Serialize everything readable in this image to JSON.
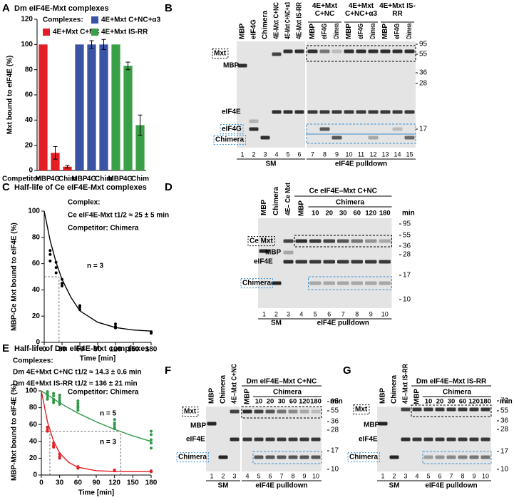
{
  "panel_letters": [
    "A",
    "B",
    "C",
    "D",
    "E",
    "F",
    "G"
  ],
  "chart_data": [
    {
      "type": "bar",
      "title": "Dm eIF4E-Mxt complexes",
      "legend_title": "Complexes:",
      "ylabel": "Mxt bound to eIF4E (%)",
      "xlabel": "Competitor",
      "categories": [
        "MBP",
        "4G",
        "Chim",
        "MBP",
        "4G",
        "Chim",
        "MBP",
        "4G",
        "Chim"
      ],
      "series": [
        {
          "name": "4E+Mxt C+NC",
          "color": "#e31e24",
          "values": [
            100,
            14,
            3,
            null,
            null,
            null,
            null,
            null,
            null
          ],
          "errors": [
            null,
            5,
            1,
            null,
            null,
            null,
            null,
            null,
            null
          ]
        },
        {
          "name": "4E+Mxt C+NC+α3",
          "color": "#3a53a4",
          "values": [
            null,
            null,
            null,
            100,
            100,
            100,
            null,
            null,
            null
          ],
          "errors": [
            null,
            null,
            null,
            null,
            3,
            4,
            null,
            null,
            null
          ]
        },
        {
          "name": "4E+Mxt IS-RR",
          "color": "#3aa047",
          "values": [
            null,
            null,
            null,
            null,
            null,
            null,
            100,
            83,
            36
          ],
          "errors": [
            null,
            null,
            null,
            null,
            null,
            null,
            null,
            3,
            8
          ]
        }
      ],
      "ylim": [
        0,
        120
      ],
      "yticks": [
        0,
        20,
        40,
        60,
        80,
        100,
        120
      ]
    },
    {
      "type": "scatter",
      "title": "Half-life of Ce eIF4E-Mxt complexes",
      "ylabel": "MBP-Ce Mxt bound to eIF4E (%)",
      "xlabel": "Time [min]",
      "annotations": [
        "Complex:",
        "Ce eIF4E-Mxt   t1/2 ≈ 25 ± 5 min",
        "Competitor: Chimera",
        "n = 3"
      ],
      "series": [
        {
          "color": "#000000",
          "x": [
            10,
            10,
            10,
            20,
            20,
            20,
            30,
            30,
            30,
            60,
            60,
            60,
            120,
            120,
            120,
            180,
            180,
            180
          ],
          "values": [
            70,
            67,
            62,
            61,
            57,
            53,
            48,
            45,
            43,
            28,
            27,
            25,
            14,
            12,
            11,
            8,
            8,
            7
          ],
          "fit": {
            "x": [
              0,
              10,
              20,
              30,
              45,
              60,
              90,
              120,
              150,
              180
            ],
            "values": [
              100,
              77.7,
              60.8,
              48.0,
              34.3,
              24.0,
              15.3,
              11.3,
              9.4,
              8.6
            ]
          }
        }
      ],
      "half_life_guides": [
        {
          "x": 25,
          "y": 50
        }
      ],
      "xlim": [
        0,
        180
      ],
      "xticks": [
        0,
        30,
        60,
        90,
        120,
        150,
        180
      ],
      "ylim": [
        0,
        100
      ],
      "yticks": [
        0,
        20,
        40,
        60,
        80,
        100
      ]
    },
    {
      "type": "scatter",
      "title": "Half-life of Dm eIF4E-Mxt complexes",
      "ylabel": "MBP-Mxt bound to eIF4E (%)",
      "xlabel": "Time [min]",
      "annotations": [
        "Complexes:",
        "Dm 4E+Mxt C+NC   t1/2 ≈ 14.3 ± 0.6 min",
        "Dm 4E+Mxt IS-RR   t1/2 ≈ 136 ± 21 min",
        "Competitor: Chimera",
        "n = 5",
        "n = 3"
      ],
      "series": [
        {
          "color": "#e31e24",
          "x": [
            10,
            10,
            10,
            20,
            20,
            20,
            30,
            30,
            30,
            60,
            60,
            60,
            120,
            120,
            120,
            180,
            180,
            180
          ],
          "values": [
            57,
            54,
            52,
            38,
            35,
            33,
            25,
            22,
            20,
            10,
            8,
            9,
            6,
            5,
            5,
            4,
            4,
            5
          ],
          "fit": {
            "x": [
              0,
              10,
              20,
              30,
              45,
              60,
              90,
              120,
              150,
              180
            ],
            "values": [
              100,
              63.1,
              40.4,
              26.0,
              14.9,
              9.2,
              5.2,
              4.3,
              4.1,
              4.0
            ]
          }
        },
        {
          "color": "#2e9a45",
          "x": [
            10,
            10,
            10,
            10,
            10,
            20,
            20,
            20,
            20,
            20,
            30,
            30,
            30,
            30,
            30,
            60,
            60,
            60,
            60,
            60,
            120,
            120,
            120,
            120,
            120,
            180,
            180,
            180,
            180,
            180
          ],
          "values": [
            99,
            97,
            95,
            92,
            90,
            97,
            94,
            90,
            88,
            86,
            95,
            92,
            89,
            86,
            84,
            88,
            85,
            82,
            80,
            77,
            66,
            62,
            60,
            57,
            55,
            52,
            48,
            42,
            38,
            32
          ],
          "fit": {
            "x": [
              0,
              30,
              60,
              90,
              120,
              150,
              180
            ],
            "values": [
              100,
              85.8,
              73.6,
              63.2,
              54.2,
              46.5,
              39.9
            ]
          }
        }
      ],
      "half_life_guides": [
        {
          "x": 14,
          "y": 52
        },
        {
          "x": 130,
          "y": 52
        }
      ],
      "xlim": [
        0,
        180
      ],
      "xticks": [
        0,
        30,
        60,
        90,
        120,
        150,
        180
      ],
      "ylim": [
        0,
        100
      ],
      "yticks": [
        0,
        20,
        40,
        60,
        80,
        100
      ]
    }
  ],
  "gels": [
    {
      "top_labels": [
        "MBP",
        "eIF4G",
        "Chimera",
        "4E-Mxt C+NC",
        "4E-Mxt C+NC+α3",
        "4E-Mxt IS-RR"
      ],
      "groups": [
        {
          "title": "4E+Mxt C+NC",
          "lanes": [
            "MBP",
            "eIF4G",
            "Chimera"
          ]
        },
        {
          "title": "4E+Mxt C+NC+α3",
          "lanes": [
            "MBP",
            "eIF4G",
            "Chimera"
          ]
        },
        {
          "title": "4E+Mxt IS-RR",
          "lanes": [
            "MBP",
            "eIF4G",
            "Chimera"
          ]
        }
      ],
      "markers": [
        95,
        55,
        36,
        28,
        17
      ],
      "left_labels": [
        "Mxt",
        "MBP",
        "eIF4E",
        "eIF4G",
        "Chimera"
      ],
      "lane_numbers": [
        1,
        2,
        3,
        4,
        5,
        6,
        7,
        8,
        9,
        10,
        11,
        12,
        13,
        14,
        15
      ],
      "bottom_labels": [
        "SM",
        "eIF4E pulldown"
      ]
    },
    {
      "top_labels": [
        "MBP",
        "Chimera",
        "4E– Ce Mxt"
      ],
      "title": "Ce eIF4E–Mxt C+NC",
      "subtitle": "Chimera",
      "lane_labels": [
        "MBP",
        10,
        20,
        30,
        60,
        120,
        180
      ],
      "unit": "min",
      "markers": [
        95,
        55,
        36,
        28,
        17,
        10
      ],
      "left_labels": [
        "Ce Mxt",
        "MBP",
        "eIF4E",
        "Chimera"
      ],
      "lane_numbers": [
        1,
        2,
        3,
        4,
        5,
        6,
        7,
        8,
        9,
        10
      ],
      "bottom_labels": [
        "SM",
        "eIF4E pulldown"
      ]
    },
    {
      "top_labels": [
        "MBP",
        "Chimera",
        "4E–Mxt C+NC"
      ],
      "title": "Dm eIF4E–Mxt C+NC",
      "subtitle": "Chimera",
      "lane_labels": [
        "MBP",
        10,
        20,
        30,
        60,
        120,
        180
      ],
      "unit": "min",
      "markers": [
        95,
        55,
        36,
        28,
        17,
        10
      ],
      "left_labels": [
        "Mxt",
        "MBP",
        "eIF4E",
        "Chimera"
      ],
      "lane_numbers": [
        1,
        2,
        3,
        4,
        5,
        6,
        7,
        8,
        9,
        10
      ],
      "bottom_labels": [
        "SM",
        "eIF4E pulldown"
      ]
    },
    {
      "top_labels": [
        "MBP",
        "Chimera",
        "4E–Mxt IS-RR"
      ],
      "title": "Dm eIF4E–Mxt IS-RR",
      "subtitle": "Chimera",
      "lane_labels": [
        "MBP",
        10,
        20,
        30,
        60,
        120,
        180
      ],
      "unit": "min",
      "markers": [
        72,
        55,
        36,
        28,
        17,
        10
      ],
      "left_labels": [
        "Mxt",
        "MBP",
        "eIF4E",
        "Chimera"
      ],
      "lane_numbers": [
        1,
        2,
        3,
        4,
        5,
        6,
        7,
        8,
        9,
        10
      ],
      "bottom_labels": [
        "SM",
        "eIF4E pulldown"
      ]
    }
  ]
}
